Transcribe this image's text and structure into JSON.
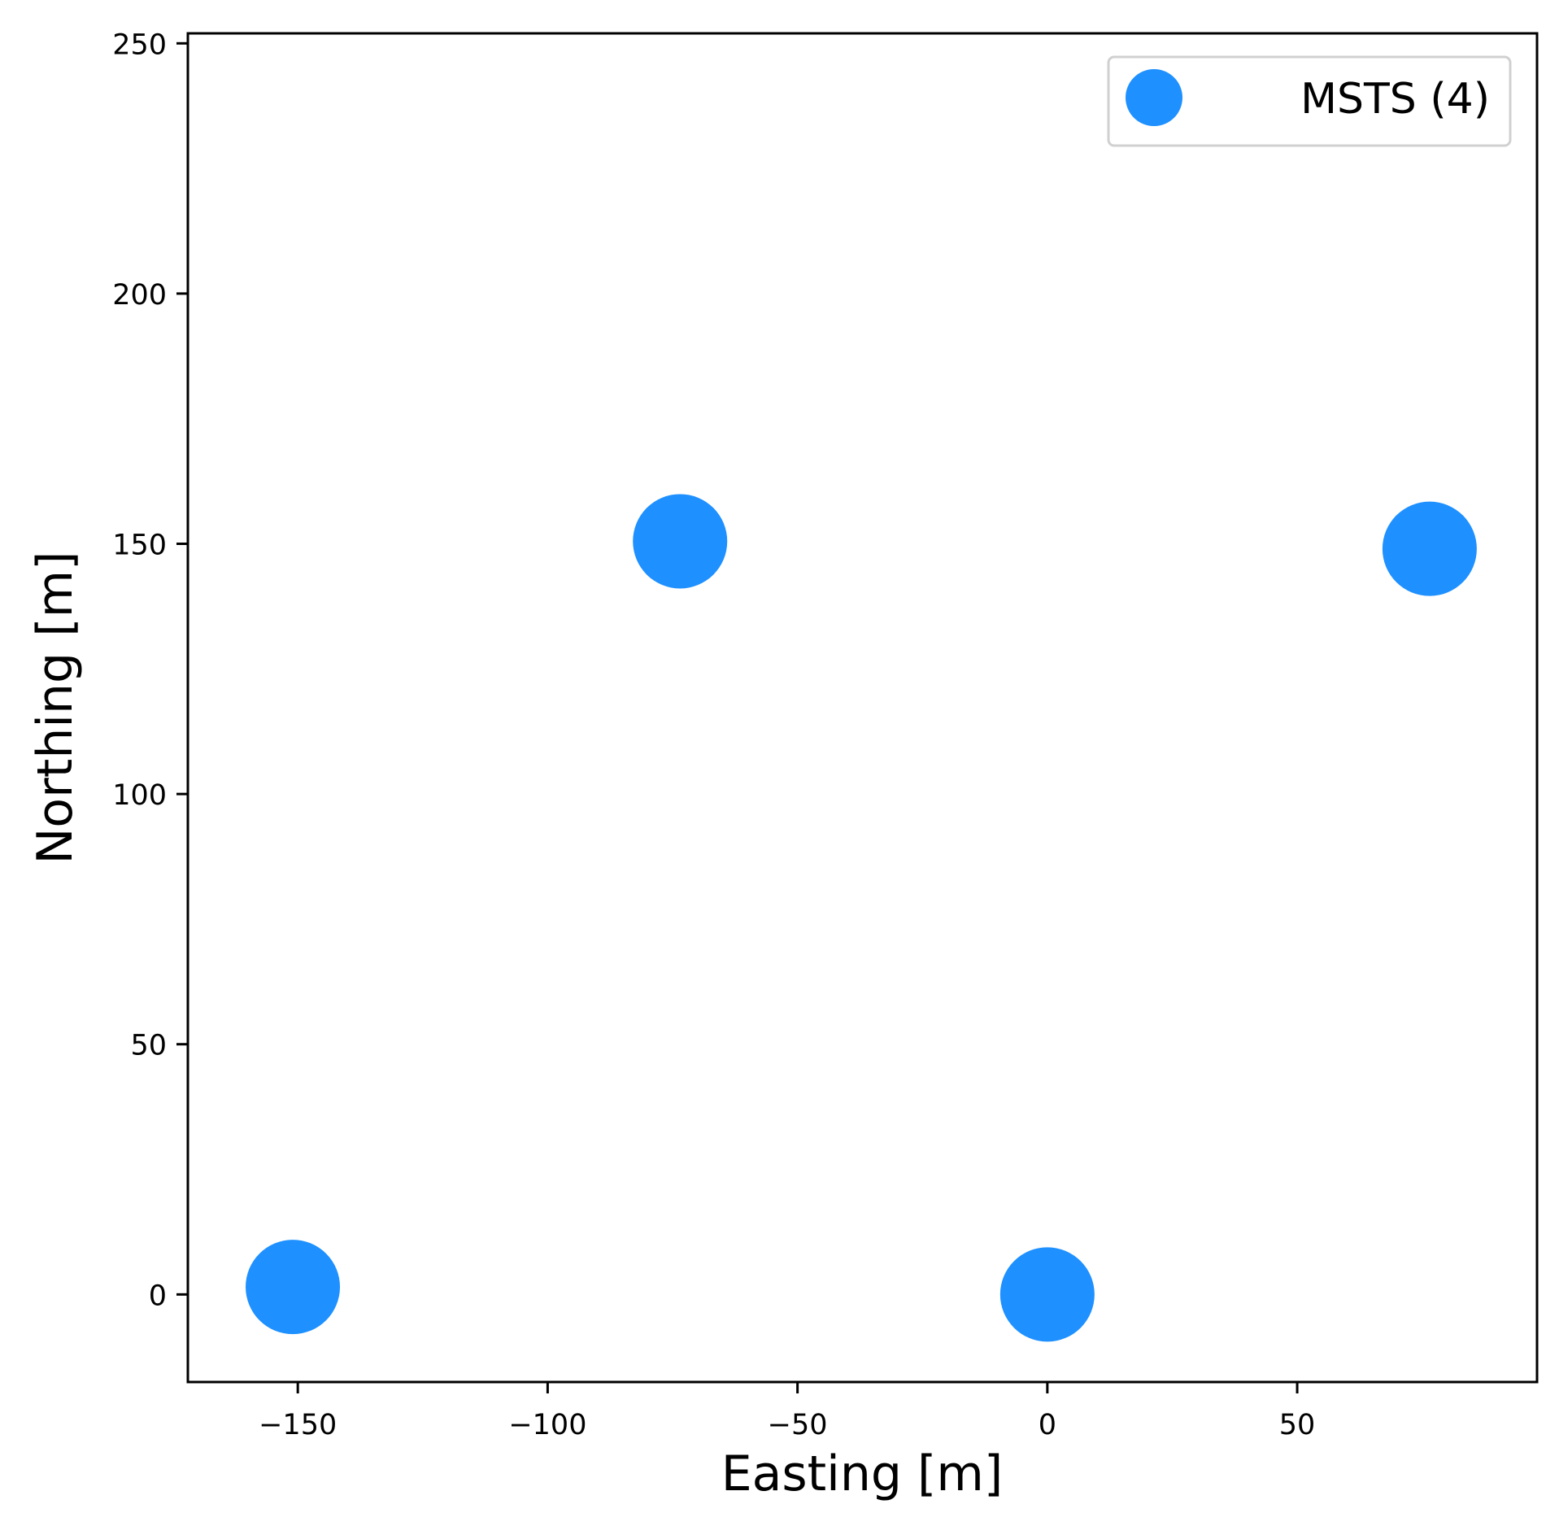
{
  "chart_data": {
    "type": "scatter",
    "title": "",
    "xlabel": "Easting [m]",
    "ylabel": "Northing [m]",
    "xlim": [
      -172,
      98
    ],
    "ylim": [
      -17.5,
      252
    ],
    "xticks": [
      -150,
      -100,
      -50,
      0,
      50
    ],
    "xtick_labels": [
      "−150",
      "−100",
      "−50",
      "0",
      "50"
    ],
    "yticks": [
      0,
      50,
      100,
      150,
      200,
      250
    ],
    "ytick_labels": [
      "0",
      "50",
      "100",
      "150",
      "200",
      "250"
    ],
    "grid": false,
    "legend_position": "top-right",
    "series": [
      {
        "name": "MSTS (4)",
        "color": "#1e90ff",
        "marker": "circle",
        "x": [
          -151,
          -73.5,
          0,
          76.5
        ],
        "y": [
          1.5,
          150.5,
          0,
          149
        ]
      }
    ]
  }
}
